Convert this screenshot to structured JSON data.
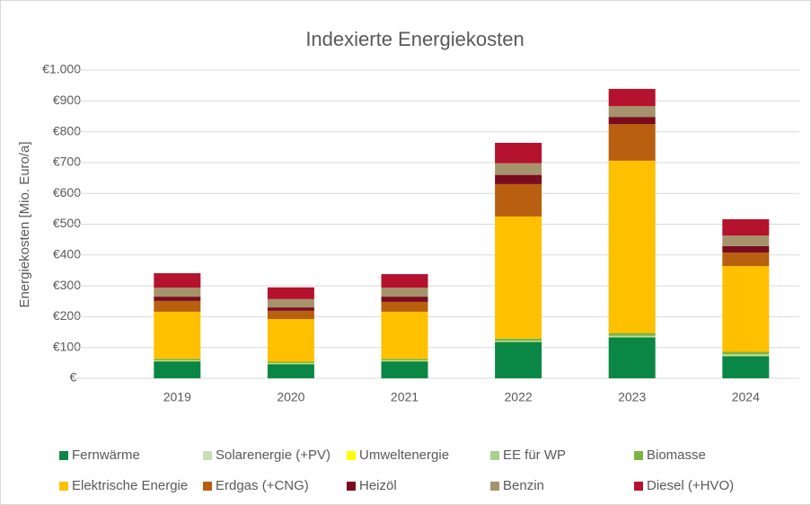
{
  "chart_data": {
    "type": "stacked_bar",
    "title": "Indexierte Energiekosten",
    "y_label": "Energiekosten [Mio. Euro/a]",
    "categories": [
      "2019",
      "2020",
      "2021",
      "2022",
      "2023",
      "2024"
    ],
    "series": [
      {
        "name": "Fernwärme",
        "color": "#0a8744",
        "values": [
          55,
          46,
          55,
          118,
          133,
          72
        ]
      },
      {
        "name": "Solarenergie (+PV)",
        "color": "#c5e0b4",
        "values": [
          1,
          1,
          1,
          1,
          1,
          1
        ]
      },
      {
        "name": "Umweltenergie",
        "color": "#ffff00",
        "values": [
          1,
          1,
          1,
          1,
          1,
          1
        ]
      },
      {
        "name": "EE für WP",
        "color": "#a9d18e",
        "values": [
          1,
          1,
          1,
          2,
          3,
          4
        ]
      },
      {
        "name": "Biomasse",
        "color": "#7cb342",
        "values": [
          5,
          5,
          5,
          7,
          9,
          8
        ]
      },
      {
        "name": "Elektrische Energie",
        "color": "#ffc000",
        "values": [
          153,
          138,
          153,
          396,
          559,
          278
        ]
      },
      {
        "name": "Erdgas (+CNG)",
        "color": "#b8600f",
        "values": [
          35,
          27,
          32,
          105,
          119,
          44
        ]
      },
      {
        "name": "Heizöl",
        "color": "#7b0c20",
        "values": [
          14,
          11,
          17,
          30,
          23,
          21
        ]
      },
      {
        "name": "Benzin",
        "color": "#a5936b",
        "values": [
          29,
          27,
          29,
          38,
          35,
          34
        ]
      },
      {
        "name": "Diesel (+HVO)",
        "color": "#b5122d",
        "values": [
          47,
          38,
          44,
          66,
          56,
          53
        ]
      }
    ],
    "ylim": [
      0,
      1000
    ],
    "yticks": [
      {
        "value": 0,
        "label": "€-"
      },
      {
        "value": 100,
        "label": "€100"
      },
      {
        "value": 200,
        "label": "€200"
      },
      {
        "value": 300,
        "label": "€300"
      },
      {
        "value": 400,
        "label": "€400"
      },
      {
        "value": 500,
        "label": "€500"
      },
      {
        "value": 600,
        "label": "€600"
      },
      {
        "value": 700,
        "label": "€700"
      },
      {
        "value": 800,
        "label": "€800"
      },
      {
        "value": 900,
        "label": "€900"
      },
      {
        "value": 1000,
        "label": "€1.000"
      }
    ],
    "grid": true,
    "legend": "bottom"
  }
}
